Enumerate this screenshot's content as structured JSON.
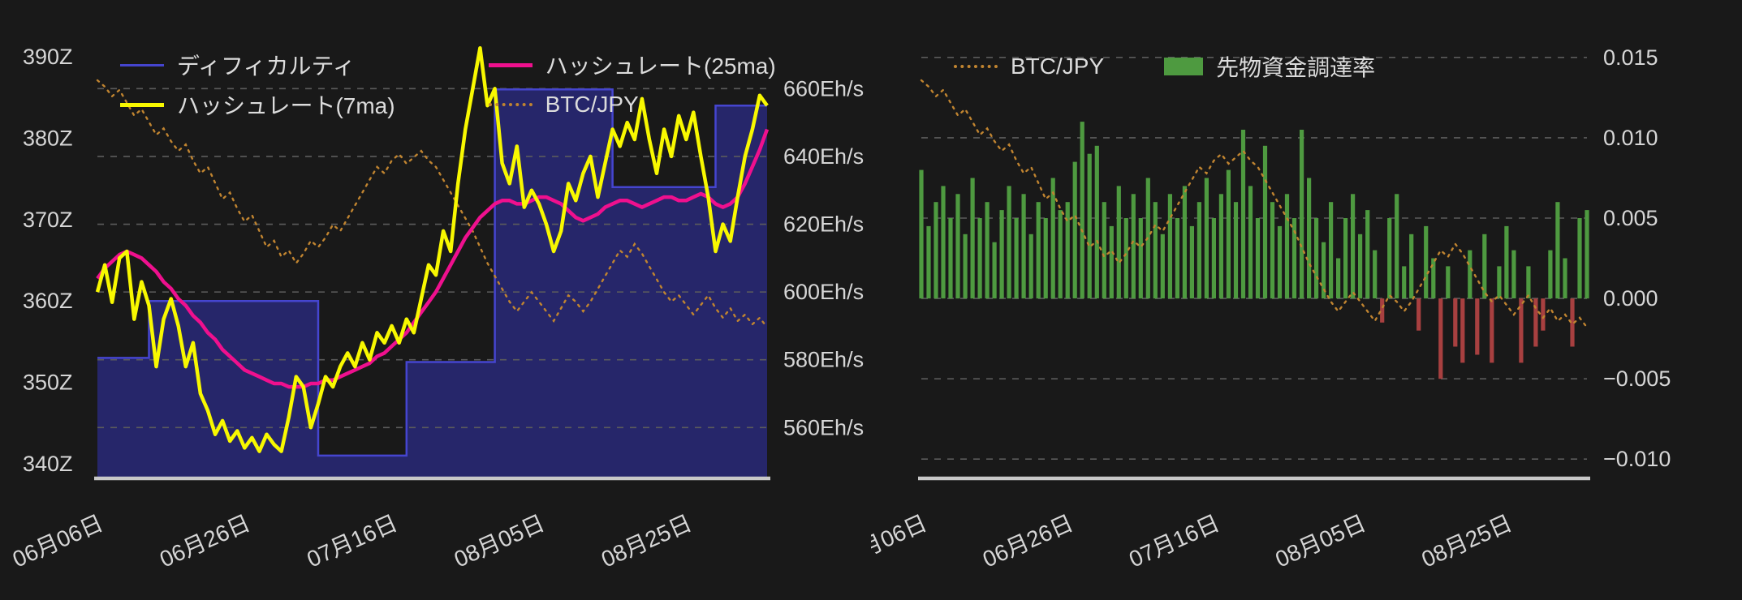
{
  "page": {
    "background": "#191919",
    "text_color": "#d6d6d6",
    "grid_color": "#5c5c5c",
    "axis_line_color": "#c8c8c8"
  },
  "x_axis": {
    "tick_labels": [
      "06月06日",
      "06月26日",
      "07月16日",
      "08月05日",
      "08月25日"
    ],
    "tick_indices": [
      1,
      21,
      41,
      61,
      81
    ],
    "n_points": 92
  },
  "chart_data": [
    {
      "id": "hashrate-difficulty",
      "type": "line",
      "legend": [
        {
          "id": "difficulty",
          "name": "ディフィカルティ",
          "swatch": "line-thin",
          "color": "#4545cf"
        },
        {
          "id": "hashrate-7ma",
          "name": "ハッシュレート(7ma)",
          "swatch": "line",
          "color": "#f8f800"
        },
        {
          "id": "hashrate-25ma",
          "name": "ハッシュレート(25ma)",
          "swatch": "line",
          "color": "#ef108e"
        },
        {
          "id": "btc-jpy",
          "name": "BTC/JPY",
          "swatch": "dotted",
          "color": "#c08430"
        }
      ],
      "left_axis": {
        "unit": "Z",
        "labels": [
          "390Z",
          "380Z",
          "370Z",
          "360Z",
          "350Z",
          "340Z"
        ],
        "values": [
          390,
          380,
          370,
          360,
          350,
          340
        ],
        "range": [
          338.2,
          391.5
        ]
      },
      "right_axis": {
        "unit": "Eh/s",
        "labels": [
          "660Eh/s",
          "640Eh/s",
          "620Eh/s",
          "600Eh/s",
          "580Eh/s",
          "560Eh/s"
        ],
        "values": [
          660,
          640,
          620,
          600,
          580,
          560
        ],
        "range": [
          545,
          673
        ]
      },
      "colors": {
        "difficulty_line": "#4545cf",
        "difficulty_fill": "#26266a",
        "hashrate_7ma": "#f8f800",
        "hashrate_25ma": "#ef108e",
        "btc_jpy": "#c08430"
      },
      "series": {
        "difficulty_steps": [
          {
            "start": 0,
            "end": 7,
            "value": 353
          },
          {
            "start": 7,
            "end": 30,
            "value": 360
          },
          {
            "start": 30,
            "end": 42,
            "value": 341
          },
          {
            "start": 42,
            "end": 54,
            "value": 352.5
          },
          {
            "start": 54,
            "end": 70,
            "value": 386
          },
          {
            "start": 70,
            "end": 84,
            "value": 374
          },
          {
            "start": 84,
            "end": 91,
            "value": 384
          }
        ],
        "hashrate_7ma": [
          600,
          608,
          597,
          610,
          612,
          592,
          603,
          596,
          578,
          592,
          598,
          590,
          578,
          585,
          570,
          565,
          558,
          562,
          556,
          559,
          554,
          557,
          553,
          558,
          555,
          553,
          563,
          575,
          572,
          560,
          567,
          575,
          572,
          578,
          582,
          578,
          585,
          580,
          588,
          585,
          590,
          585,
          592,
          588,
          598,
          608,
          605,
          618,
          612,
          632,
          648,
          660,
          672,
          655,
          660,
          638,
          632,
          643,
          625,
          630,
          626,
          620,
          612,
          618,
          632,
          627,
          635,
          640,
          628,
          638,
          648,
          643,
          650,
          645,
          657,
          645,
          635,
          648,
          640,
          652,
          645,
          653,
          640,
          628,
          612,
          620,
          615,
          628,
          640,
          648,
          658,
          655
        ],
        "hashrate_25ma": [
          604,
          607,
          609,
          611,
          612,
          611,
          610,
          608,
          606,
          603,
          601,
          598,
          596,
          593,
          591,
          588,
          586,
          583,
          581,
          579,
          577,
          576,
          575,
          574,
          573,
          573,
          572,
          572,
          572,
          573,
          573,
          574,
          574,
          575,
          576,
          577,
          578,
          579,
          581,
          582,
          584,
          586,
          588,
          591,
          594,
          597,
          600,
          604,
          608,
          612,
          616,
          619,
          622,
          624,
          626,
          627,
          627,
          626,
          626,
          627,
          628,
          628,
          627,
          626,
          624,
          622,
          621,
          622,
          623,
          625,
          626,
          627,
          627,
          626,
          625,
          626,
          627,
          628,
          628,
          627,
          627,
          628,
          629,
          628,
          626,
          625,
          626,
          628,
          632,
          637,
          642,
          648
        ],
        "btc_jpy_normalized": [
          0.97,
          0.95,
          0.92,
          0.94,
          0.9,
          0.86,
          0.88,
          0.84,
          0.8,
          0.82,
          0.78,
          0.75,
          0.77,
          0.72,
          0.68,
          0.7,
          0.65,
          0.6,
          0.62,
          0.57,
          0.53,
          0.55,
          0.5,
          0.45,
          0.47,
          0.42,
          0.44,
          0.4,
          0.43,
          0.47,
          0.45,
          0.48,
          0.52,
          0.5,
          0.54,
          0.58,
          0.62,
          0.66,
          0.7,
          0.68,
          0.72,
          0.74,
          0.71,
          0.73,
          0.75,
          0.72,
          0.7,
          0.66,
          0.62,
          0.58,
          0.54,
          0.5,
          0.45,
          0.4,
          0.36,
          0.32,
          0.28,
          0.25,
          0.28,
          0.31,
          0.28,
          0.25,
          0.22,
          0.26,
          0.3,
          0.28,
          0.25,
          0.28,
          0.32,
          0.36,
          0.4,
          0.44,
          0.42,
          0.46,
          0.43,
          0.39,
          0.35,
          0.31,
          0.28,
          0.3,
          0.27,
          0.24,
          0.27,
          0.3,
          0.26,
          0.23,
          0.26,
          0.22,
          0.24,
          0.21,
          0.23,
          0.2
        ]
      }
    },
    {
      "id": "funding-rate",
      "type": "bar",
      "legend": [
        {
          "id": "btc-jpy",
          "name": "BTC/JPY",
          "swatch": "dotted",
          "color": "#c08430"
        },
        {
          "id": "funding-rate",
          "name": "先物資金調達率",
          "swatch": "rect",
          "color": "#4e9a40"
        }
      ],
      "right_axis": {
        "unit": "",
        "labels": [
          "0.015",
          "0.010",
          "0.005",
          "0.000",
          "−0.005",
          "−0.010"
        ],
        "values": [
          0.015,
          0.01,
          0.005,
          0,
          -0.005,
          -0.01
        ],
        "range": [
          -0.0112,
          0.0158
        ]
      },
      "colors": {
        "positive": "#4e9a40",
        "negative": "#a84040",
        "btc_jpy": "#c08430"
      },
      "series": {
        "funding_rate": [
          0.008,
          0.0045,
          0.006,
          0.007,
          0.005,
          0.0065,
          0.004,
          0.0075,
          0.005,
          0.006,
          0.0035,
          0.0055,
          0.007,
          0.005,
          0.0065,
          0.004,
          0.006,
          0.005,
          0.0075,
          0.0055,
          0.006,
          0.0085,
          0.011,
          0.009,
          0.0095,
          0.006,
          0.0045,
          0.007,
          0.005,
          0.0065,
          0.005,
          0.0075,
          0.006,
          0.004,
          0.0065,
          0.005,
          0.007,
          0.0045,
          0.006,
          0.0075,
          0.005,
          0.0065,
          0.008,
          0.006,
          0.0105,
          0.007,
          0.005,
          0.0095,
          0.006,
          0.0045,
          0.0065,
          0.005,
          0.0105,
          0.0075,
          0.005,
          0.0035,
          0.006,
          0.0025,
          0.005,
          0.0065,
          0.004,
          0.0055,
          0.003,
          -0.0015,
          0.005,
          0.0065,
          0.002,
          0.004,
          -0.002,
          0.0045,
          0.0025,
          -0.005,
          0.002,
          -0.003,
          -0.004,
          0.003,
          -0.0035,
          0.004,
          -0.004,
          0.002,
          0.0045,
          0.003,
          -0.004,
          0.002,
          -0.003,
          -0.002,
          0.003,
          0.006,
          0.0025,
          -0.003,
          0.005,
          0.0055
        ],
        "btc_jpy_normalized": [
          0.97,
          0.95,
          0.92,
          0.94,
          0.9,
          0.86,
          0.88,
          0.84,
          0.8,
          0.82,
          0.78,
          0.75,
          0.77,
          0.72,
          0.68,
          0.7,
          0.65,
          0.6,
          0.62,
          0.57,
          0.53,
          0.55,
          0.5,
          0.45,
          0.47,
          0.42,
          0.44,
          0.4,
          0.43,
          0.47,
          0.45,
          0.48,
          0.52,
          0.5,
          0.54,
          0.58,
          0.62,
          0.66,
          0.7,
          0.68,
          0.72,
          0.74,
          0.71,
          0.73,
          0.75,
          0.72,
          0.7,
          0.66,
          0.62,
          0.58,
          0.54,
          0.5,
          0.45,
          0.4,
          0.36,
          0.32,
          0.28,
          0.25,
          0.28,
          0.31,
          0.28,
          0.25,
          0.22,
          0.26,
          0.3,
          0.28,
          0.25,
          0.28,
          0.32,
          0.36,
          0.4,
          0.44,
          0.42,
          0.46,
          0.43,
          0.39,
          0.35,
          0.31,
          0.28,
          0.3,
          0.27,
          0.24,
          0.27,
          0.3,
          0.26,
          0.23,
          0.26,
          0.22,
          0.24,
          0.21,
          0.23,
          0.2
        ]
      }
    }
  ]
}
